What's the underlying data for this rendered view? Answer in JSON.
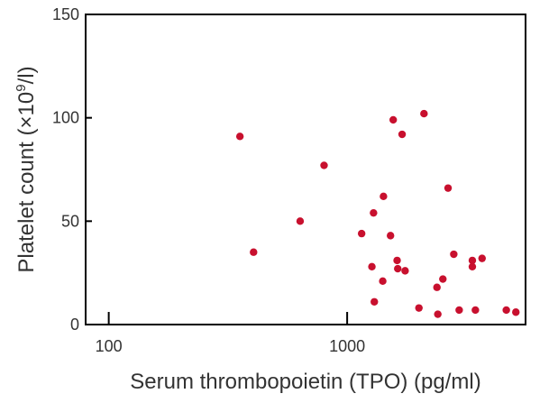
{
  "chart_data": {
    "type": "scatter",
    "xlabel": "Serum thrombopoietin (TPO) (pg/ml)",
    "ylabel_main": "Platelet count (×10",
    "ylabel_sup": "9",
    "ylabel_end": "/l)",
    "x_scale": "log",
    "xlim": [
      80,
      5600
    ],
    "ylim": [
      0,
      150
    ],
    "x_ticks": [
      {
        "value": 100,
        "label": "100"
      },
      {
        "value": 1000,
        "label": "1000"
      }
    ],
    "y_ticks": [
      {
        "value": 0,
        "label": "0"
      },
      {
        "value": 50,
        "label": "50"
      },
      {
        "value": 100,
        "label": "100"
      },
      {
        "value": 150,
        "label": "150"
      }
    ],
    "grid": false,
    "marker_color": "#c8102e",
    "points": [
      {
        "x": 355,
        "y": 91
      },
      {
        "x": 405,
        "y": 35
      },
      {
        "x": 635,
        "y": 50
      },
      {
        "x": 800,
        "y": 77
      },
      {
        "x": 1150,
        "y": 44
      },
      {
        "x": 1270,
        "y": 28
      },
      {
        "x": 1290,
        "y": 54
      },
      {
        "x": 1300,
        "y": 11
      },
      {
        "x": 1410,
        "y": 21
      },
      {
        "x": 1420,
        "y": 62
      },
      {
        "x": 1520,
        "y": 43
      },
      {
        "x": 1560,
        "y": 99
      },
      {
        "x": 1620,
        "y": 31
      },
      {
        "x": 1630,
        "y": 27
      },
      {
        "x": 1700,
        "y": 92
      },
      {
        "x": 1750,
        "y": 26
      },
      {
        "x": 2000,
        "y": 8
      },
      {
        "x": 2100,
        "y": 102
      },
      {
        "x": 2380,
        "y": 18
      },
      {
        "x": 2400,
        "y": 5
      },
      {
        "x": 2520,
        "y": 22
      },
      {
        "x": 2650,
        "y": 66
      },
      {
        "x": 2800,
        "y": 34
      },
      {
        "x": 2950,
        "y": 7
      },
      {
        "x": 3350,
        "y": 31
      },
      {
        "x": 3350,
        "y": 28
      },
      {
        "x": 3450,
        "y": 7
      },
      {
        "x": 3680,
        "y": 32
      },
      {
        "x": 4650,
        "y": 7
      },
      {
        "x": 5100,
        "y": 6
      }
    ]
  }
}
